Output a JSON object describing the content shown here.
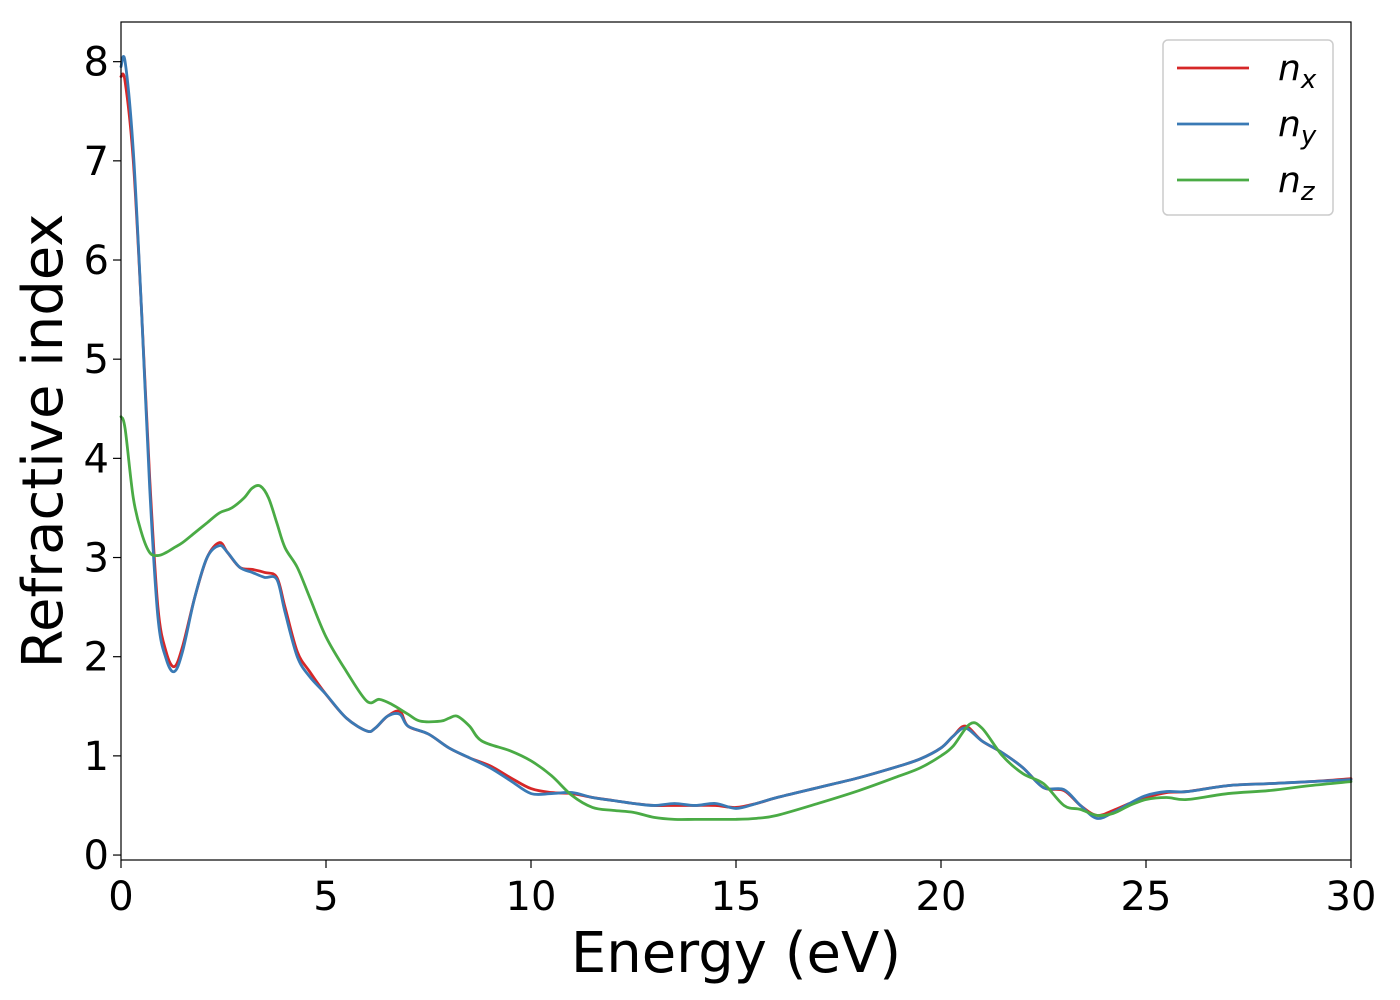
{
  "chart_data": {
    "type": "line",
    "xlabel": "Energy (eV)",
    "ylabel": "Refractive index",
    "xlim": [
      0,
      30
    ],
    "ylim": [
      -0.05,
      8.4
    ],
    "xticks": [
      0,
      5,
      10,
      15,
      20,
      25,
      30
    ],
    "yticks": [
      0,
      1,
      2,
      3,
      4,
      5,
      6,
      7,
      8
    ],
    "grid": false,
    "legend_position": "top-right",
    "series": [
      {
        "name": "n",
        "subscript": "x",
        "color": "#d62728",
        "x": [
          0,
          0.1,
          0.3,
          0.5,
          0.7,
          0.9,
          1.1,
          1.3,
          1.5,
          1.8,
          2.1,
          2.4,
          2.6,
          2.9,
          3.2,
          3.5,
          3.8,
          4.0,
          4.3,
          4.6,
          5.0,
          5.5,
          6.0,
          6.2,
          6.5,
          6.8,
          7.0,
          7.5,
          8.0,
          8.5,
          9.0,
          9.5,
          10.0,
          10.5,
          11.0,
          11.5,
          12.0,
          12.5,
          13.0,
          13.5,
          14.0,
          14.5,
          15.0,
          15.5,
          16.0,
          17.0,
          18.0,
          19.0,
          19.5,
          20.0,
          20.3,
          20.6,
          21.0,
          21.5,
          22.0,
          22.5,
          23.0,
          23.4,
          23.8,
          24.2,
          24.6,
          25.0,
          25.5,
          26.0,
          27.0,
          28.0,
          29.0,
          30.0
        ],
        "y": [
          7.85,
          7.8,
          7.0,
          5.5,
          3.8,
          2.5,
          2.05,
          1.9,
          2.1,
          2.6,
          3.0,
          3.15,
          3.05,
          2.9,
          2.88,
          2.85,
          2.8,
          2.5,
          2.05,
          1.85,
          1.62,
          1.38,
          1.25,
          1.28,
          1.4,
          1.45,
          1.3,
          1.22,
          1.08,
          0.98,
          0.9,
          0.78,
          0.67,
          0.63,
          0.62,
          0.58,
          0.55,
          0.52,
          0.5,
          0.5,
          0.5,
          0.5,
          0.48,
          0.52,
          0.58,
          0.68,
          0.78,
          0.9,
          0.97,
          1.08,
          1.2,
          1.3,
          1.15,
          1.03,
          0.88,
          0.68,
          0.65,
          0.5,
          0.4,
          0.45,
          0.52,
          0.58,
          0.63,
          0.64,
          0.7,
          0.72,
          0.74,
          0.77
        ]
      },
      {
        "name": "n",
        "subscript": "y",
        "color": "#3a7ab5",
        "x": [
          0,
          0.1,
          0.3,
          0.5,
          0.7,
          0.9,
          1.1,
          1.3,
          1.5,
          1.8,
          2.1,
          2.4,
          2.6,
          2.9,
          3.2,
          3.5,
          3.8,
          4.0,
          4.3,
          4.6,
          5.0,
          5.5,
          6.0,
          6.2,
          6.5,
          6.8,
          7.0,
          7.5,
          8.0,
          8.5,
          9.0,
          9.5,
          10.0,
          10.5,
          11.0,
          11.5,
          12.0,
          12.5,
          13.0,
          13.5,
          14.0,
          14.5,
          15.0,
          15.5,
          16.0,
          17.0,
          18.0,
          19.0,
          19.5,
          20.0,
          20.3,
          20.6,
          21.0,
          21.5,
          22.0,
          22.5,
          23.0,
          23.4,
          23.8,
          24.2,
          24.6,
          25.0,
          25.5,
          26.0,
          27.0,
          28.0,
          29.0,
          30.0
        ],
        "y": [
          7.95,
          8.0,
          7.1,
          5.5,
          3.7,
          2.4,
          1.98,
          1.85,
          2.05,
          2.6,
          3.0,
          3.12,
          3.05,
          2.9,
          2.85,
          2.8,
          2.78,
          2.45,
          2.0,
          1.8,
          1.62,
          1.38,
          1.25,
          1.28,
          1.4,
          1.42,
          1.3,
          1.22,
          1.08,
          0.98,
          0.88,
          0.75,
          0.62,
          0.62,
          0.63,
          0.58,
          0.55,
          0.52,
          0.5,
          0.52,
          0.5,
          0.52,
          0.47,
          0.52,
          0.58,
          0.68,
          0.78,
          0.9,
          0.97,
          1.08,
          1.2,
          1.28,
          1.15,
          1.03,
          0.88,
          0.68,
          0.66,
          0.5,
          0.37,
          0.43,
          0.52,
          0.6,
          0.64,
          0.64,
          0.7,
          0.72,
          0.74,
          0.76
        ]
      },
      {
        "name": "n",
        "subscript": "z",
        "color": "#4aab45",
        "x": [
          0,
          0.1,
          0.3,
          0.5,
          0.7,
          0.9,
          1.1,
          1.3,
          1.5,
          1.8,
          2.1,
          2.4,
          2.7,
          3.0,
          3.2,
          3.4,
          3.6,
          3.8,
          4.0,
          4.3,
          4.6,
          5.0,
          5.5,
          6.0,
          6.3,
          6.6,
          7.0,
          7.3,
          7.8,
          8.0,
          8.2,
          8.5,
          8.8,
          9.5,
          10.0,
          10.5,
          11.0,
          11.5,
          12.0,
          12.5,
          13.0,
          13.5,
          14.0,
          14.5,
          15.0,
          15.5,
          16.0,
          17.0,
          18.0,
          19.0,
          19.5,
          20.0,
          20.3,
          20.7,
          21.0,
          21.5,
          22.0,
          22.5,
          23.0,
          23.4,
          23.8,
          24.2,
          24.6,
          25.0,
          25.5,
          26.0,
          27.0,
          28.0,
          29.0,
          30.0
        ],
        "y": [
          4.42,
          4.3,
          3.6,
          3.25,
          3.05,
          3.02,
          3.05,
          3.1,
          3.15,
          3.25,
          3.35,
          3.45,
          3.5,
          3.6,
          3.7,
          3.72,
          3.6,
          3.35,
          3.1,
          2.9,
          2.6,
          2.2,
          1.85,
          1.55,
          1.57,
          1.52,
          1.42,
          1.35,
          1.35,
          1.38,
          1.4,
          1.3,
          1.15,
          1.05,
          0.95,
          0.8,
          0.6,
          0.48,
          0.45,
          0.43,
          0.38,
          0.36,
          0.36,
          0.36,
          0.36,
          0.37,
          0.4,
          0.52,
          0.65,
          0.8,
          0.88,
          1.0,
          1.1,
          1.32,
          1.28,
          1.0,
          0.82,
          0.72,
          0.5,
          0.46,
          0.4,
          0.42,
          0.5,
          0.56,
          0.58,
          0.56,
          0.62,
          0.65,
          0.7,
          0.74
        ]
      }
    ]
  }
}
